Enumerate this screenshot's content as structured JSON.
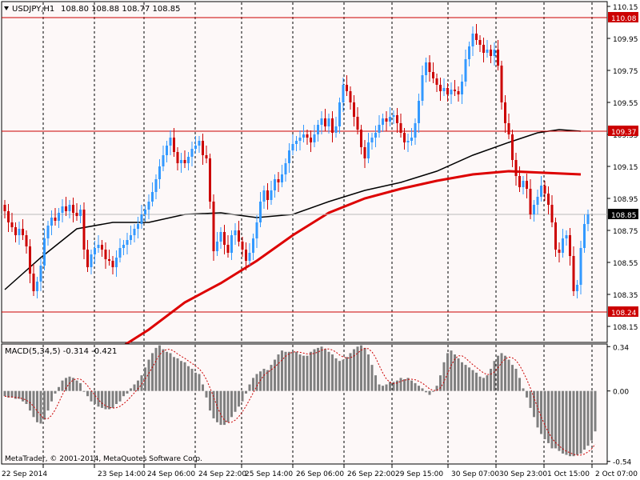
{
  "chart_data": [
    {
      "type": "candlestick",
      "title": "USDJPY,H1",
      "ohlc_text": "108.80 108.88 108.77 108.85",
      "ylim": [
        108.05,
        110.18
      ],
      "y_ticks": [
        "110.15",
        "109.95",
        "109.75",
        "109.55",
        "109.35",
        "109.15",
        "108.95",
        "108.75",
        "108.55",
        "108.35",
        "108.15"
      ],
      "hlines": [
        {
          "label": "110.08",
          "value": 110.08
        },
        {
          "label": "109.37",
          "value": 109.37
        },
        {
          "label": "108.24",
          "value": 108.24
        }
      ],
      "current_price": {
        "label": "108.85",
        "value": 108.85
      },
      "candle_colors": {
        "up": "#3399ff",
        "down": "#cc0000"
      },
      "candles_close": [
        108.87,
        108.8,
        108.77,
        108.72,
        108.76,
        108.72,
        108.65,
        108.48,
        108.37,
        108.43,
        108.53,
        108.7,
        108.78,
        108.83,
        108.81,
        108.86,
        108.9,
        108.87,
        108.91,
        108.86,
        108.84,
        108.88,
        108.63,
        108.52,
        108.6,
        108.64,
        108.66,
        108.63,
        108.57,
        108.56,
        108.52,
        108.58,
        108.64,
        108.66,
        108.69,
        108.72,
        108.76,
        108.79,
        108.85,
        108.88,
        108.93,
        108.99,
        109.07,
        109.15,
        109.22,
        109.28,
        109.33,
        109.24,
        109.17,
        109.19,
        109.17,
        109.21,
        109.26,
        109.28,
        109.31,
        109.22,
        109.2,
        108.93,
        108.62,
        108.68,
        108.74,
        108.66,
        108.61,
        108.72,
        108.75,
        108.68,
        108.63,
        108.56,
        108.61,
        108.7,
        108.8,
        108.93,
        109.0,
        108.94,
        109.0,
        109.07,
        109.05,
        109.1,
        109.17,
        109.25,
        109.29,
        109.31,
        109.33,
        109.35,
        109.33,
        109.3,
        109.35,
        109.41,
        109.45,
        109.4,
        109.45,
        109.36,
        109.4,
        109.55,
        109.66,
        109.62,
        109.55,
        109.46,
        109.38,
        109.27,
        109.2,
        109.3,
        109.33,
        109.36,
        109.41,
        109.45,
        109.43,
        109.46,
        109.47,
        109.42,
        109.36,
        109.3,
        109.31,
        109.33,
        109.42,
        109.56,
        109.72,
        109.8,
        109.74,
        109.7,
        109.66,
        109.62,
        109.64,
        109.6,
        109.63,
        109.62,
        109.6,
        109.68,
        109.82,
        109.9,
        109.98,
        109.94,
        109.91,
        109.86,
        109.88,
        109.84,
        109.88,
        109.78,
        109.55,
        109.42,
        109.35,
        109.19,
        109.09,
        109.02,
        109.06,
        109.01,
        108.85,
        108.91,
        108.96,
        109.03,
        108.98,
        108.91,
        108.8,
        108.63,
        108.61,
        108.7,
        108.72,
        108.59,
        108.37,
        108.41,
        108.64,
        108.79,
        108.85
      ],
      "ma_black": [
        {
          "i": 0,
          "v": 108.38
        },
        {
          "i": 10,
          "v": 108.58
        },
        {
          "i": 20,
          "v": 108.76
        },
        {
          "i": 30,
          "v": 108.8
        },
        {
          "i": 40,
          "v": 108.8
        },
        {
          "i": 50,
          "v": 108.85
        },
        {
          "i": 60,
          "v": 108.86
        },
        {
          "i": 70,
          "v": 108.83
        },
        {
          "i": 80,
          "v": 108.85
        },
        {
          "i": 90,
          "v": 108.93
        },
        {
          "i": 100,
          "v": 109.0
        },
        {
          "i": 110,
          "v": 109.05
        },
        {
          "i": 120,
          "v": 109.12
        },
        {
          "i": 130,
          "v": 109.22
        },
        {
          "i": 140,
          "v": 109.3
        },
        {
          "i": 148,
          "v": 109.36
        },
        {
          "i": 154,
          "v": 109.38
        },
        {
          "i": 160,
          "v": 109.37
        }
      ],
      "ma_red": [
        {
          "i": 33,
          "v": 108.03
        },
        {
          "i": 40,
          "v": 108.13
        },
        {
          "i": 50,
          "v": 108.3
        },
        {
          "i": 60,
          "v": 108.42
        },
        {
          "i": 70,
          "v": 108.56
        },
        {
          "i": 80,
          "v": 108.72
        },
        {
          "i": 90,
          "v": 108.86
        },
        {
          "i": 100,
          "v": 108.95
        },
        {
          "i": 110,
          "v": 109.01
        },
        {
          "i": 120,
          "v": 109.06
        },
        {
          "i": 130,
          "v": 109.1
        },
        {
          "i": 140,
          "v": 109.12
        },
        {
          "i": 150,
          "v": 109.11
        },
        {
          "i": 160,
          "v": 109.1
        }
      ]
    },
    {
      "type": "bar",
      "title": "MACD(5,34,5) -0.314 -0.421",
      "ylim": [
        -0.56,
        0.36
      ],
      "y_ticks": [
        "0.34",
        "0.00",
        "-0.54"
      ],
      "values": [
        -0.04,
        -0.05,
        -0.05,
        -0.06,
        -0.06,
        -0.08,
        -0.1,
        -0.15,
        -0.2,
        -0.24,
        -0.25,
        -0.22,
        -0.15,
        -0.08,
        -0.02,
        0.03,
        0.08,
        0.1,
        0.11,
        0.1,
        0.08,
        0.06,
        0.0,
        -0.04,
        -0.08,
        -0.1,
        -0.12,
        -0.13,
        -0.14,
        -0.14,
        -0.13,
        -0.1,
        -0.08,
        -0.04,
        -0.02,
        0.02,
        0.05,
        0.08,
        0.12,
        0.18,
        0.24,
        0.29,
        0.33,
        0.35,
        0.32,
        0.3,
        0.29,
        0.26,
        0.25,
        0.23,
        0.22,
        0.19,
        0.17,
        0.14,
        0.13,
        0.05,
        -0.05,
        -0.15,
        -0.21,
        -0.24,
        -0.26,
        -0.26,
        -0.24,
        -0.2,
        -0.16,
        -0.12,
        -0.08,
        -0.02,
        0.05,
        0.1,
        0.13,
        0.15,
        0.17,
        0.16,
        0.2,
        0.24,
        0.28,
        0.31,
        0.3,
        0.3,
        0.3,
        0.3,
        0.28,
        0.27,
        0.27,
        0.3,
        0.32,
        0.33,
        0.34,
        0.32,
        0.3,
        0.28,
        0.25,
        0.23,
        0.24,
        0.26,
        0.29,
        0.32,
        0.34,
        0.35,
        0.33,
        0.28,
        0.2,
        0.12,
        0.05,
        0.04,
        0.05,
        0.07,
        0.07,
        0.08,
        0.1,
        0.09,
        0.1,
        0.08,
        0.06,
        0.04,
        0.02,
        -0.01,
        -0.03,
        0.0,
        0.04,
        0.12,
        0.22,
        0.29,
        0.31,
        0.28,
        0.25,
        0.22,
        0.2,
        0.18,
        0.16,
        0.14,
        0.11,
        0.1,
        0.12,
        0.17,
        0.23,
        0.27,
        0.29,
        0.27,
        0.24,
        0.2,
        0.17,
        0.1,
        0.02,
        -0.05,
        -0.13,
        -0.2,
        -0.28,
        -0.33,
        -0.37,
        -0.4,
        -0.44,
        -0.44,
        -0.46,
        -0.48,
        -0.49,
        -0.5,
        -0.5,
        -0.49,
        -0.48,
        -0.45,
        -0.42,
        -0.38,
        -0.31
      ]
    }
  ],
  "x_labels": [
    "22 Sep 2014",
    "23 Sep 14:00",
    "24 Sep 06:00",
    "24 Sep 22:00",
    "25 Sep 14:00",
    "26 Sep 06:00",
    "26 Sep 22:00",
    "29 Sep 15:00",
    "30 Sep 07:00",
    "30 Sep 23:00",
    "1 Oct 15:00",
    "2 Oct 07:00"
  ],
  "copyright": "MetaTrader, © 2001-2014, MetaQuotes Software Corp.",
  "colors": {
    "background": "#ffffff",
    "plot_bg": "#fdf8f8",
    "grid": "#000000",
    "hline": "#cc0000",
    "ma_black": "#000000",
    "ma_red": "#dd0000",
    "macd_bar": "#808080",
    "signal": "#cc0000"
  }
}
